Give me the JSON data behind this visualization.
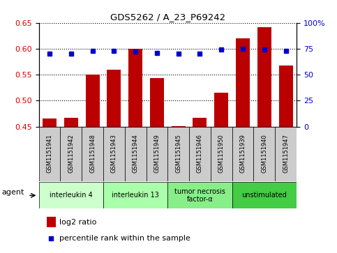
{
  "title": "GDS5262 / A_23_P69242",
  "samples": [
    "GSM1151941",
    "GSM1151942",
    "GSM1151948",
    "GSM1151943",
    "GSM1151944",
    "GSM1151949",
    "GSM1151945",
    "GSM1151946",
    "GSM1151950",
    "GSM1151939",
    "GSM1151940",
    "GSM1151947"
  ],
  "log2_ratio": [
    0.466,
    0.467,
    0.55,
    0.559,
    0.6,
    0.543,
    0.451,
    0.467,
    0.515,
    0.62,
    0.641,
    0.567
  ],
  "percentile_rank": [
    70,
    70,
    73,
    73,
    72,
    71,
    70,
    70,
    74,
    75,
    74,
    73
  ],
  "ylim_left": [
    0.45,
    0.65
  ],
  "ylim_right": [
    0,
    100
  ],
  "yticks_left": [
    0.45,
    0.5,
    0.55,
    0.6,
    0.65
  ],
  "yticks_right": [
    0,
    25,
    50,
    75,
    100
  ],
  "bar_color": "#bb0000",
  "dot_color": "#0000cc",
  "agent_groups": [
    {
      "label": "interleukin 4",
      "start": 0,
      "end": 3,
      "color": "#ccffcc"
    },
    {
      "label": "interleukin 13",
      "start": 3,
      "end": 6,
      "color": "#aaffaa"
    },
    {
      "label": "tumor necrosis\nfactor-α",
      "start": 6,
      "end": 9,
      "color": "#88ee88"
    },
    {
      "label": "unstimulated",
      "start": 9,
      "end": 12,
      "color": "#44cc44"
    }
  ],
  "legend_log2_color": "#bb0000",
  "legend_dot_color": "#0000cc",
  "bg_color": "#ffffff",
  "tick_label_color_left": "#cc0000",
  "tick_label_color_right": "#0000cc",
  "agent_label": "agent",
  "bar_baseline": 0.45,
  "sample_box_color": "#cccccc"
}
